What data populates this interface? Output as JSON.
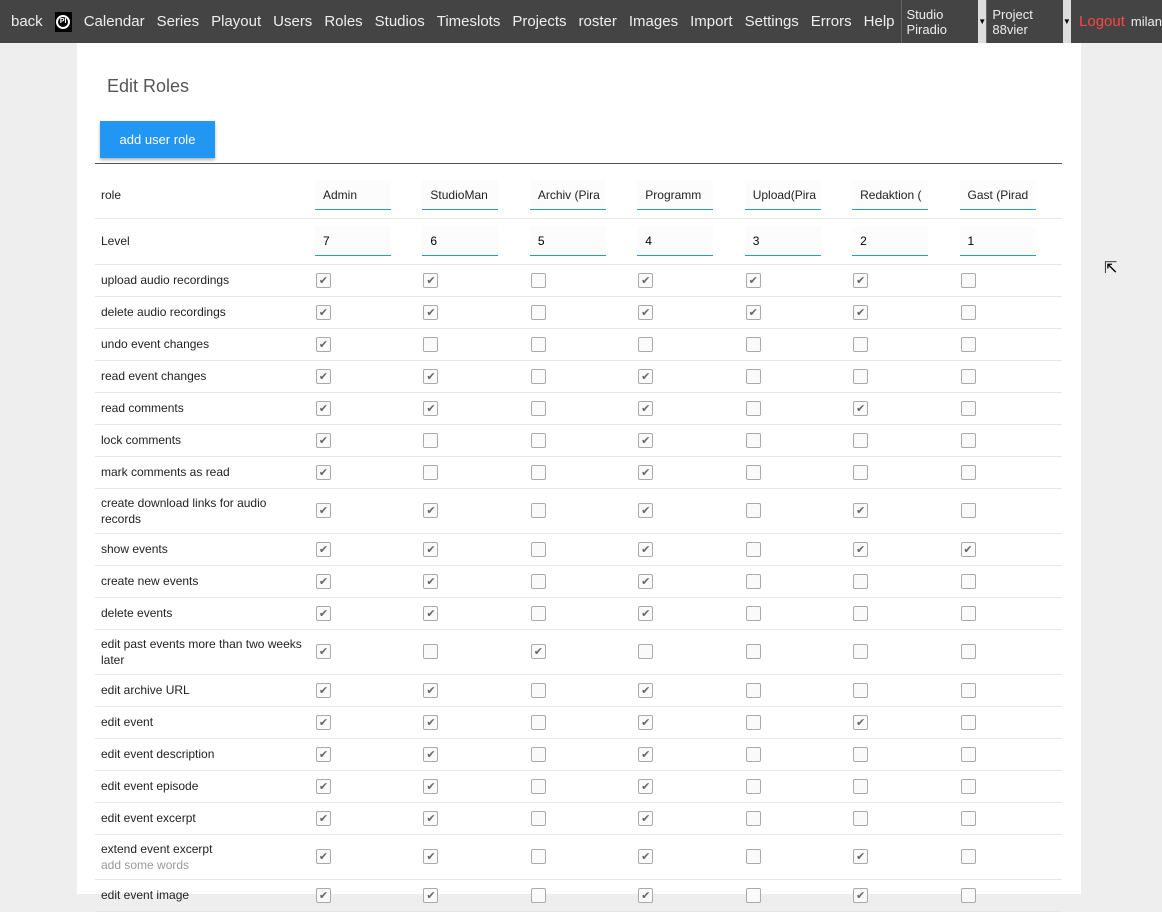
{
  "nav": {
    "back": "back",
    "items": [
      "Calendar",
      "Series",
      "Playout",
      "Users",
      "Roles",
      "Studios",
      "Timeslots",
      "Projects",
      "roster",
      "Images",
      "Import",
      "Settings",
      "Errors",
      "Help"
    ],
    "studio": "Studio Piradio",
    "project": "Project 88vier",
    "logout": "Logout",
    "user": "milan",
    "logo": "PI"
  },
  "page": {
    "title": "Edit Roles",
    "add_button": "add user role"
  },
  "table": {
    "role_label": "role",
    "level_label": "Level",
    "roles": [
      "Admin",
      "StudioMan",
      "Archiv (Pira",
      "Programm",
      "Upload(Pira",
      "Redaktion (",
      "Gast (Pirad"
    ],
    "levels": [
      "7",
      "6",
      "5",
      "4",
      "3",
      "2",
      "1"
    ],
    "permissions": [
      {
        "label": "upload audio recordings",
        "values": [
          1,
          1,
          0,
          1,
          1,
          1,
          0
        ]
      },
      {
        "label": "delete audio recordings",
        "values": [
          1,
          1,
          0,
          1,
          1,
          1,
          0
        ]
      },
      {
        "label": "undo event changes",
        "values": [
          1,
          0,
          0,
          0,
          0,
          0,
          0
        ]
      },
      {
        "label": "read event changes",
        "values": [
          1,
          1,
          0,
          1,
          0,
          0,
          0
        ]
      },
      {
        "label": "read comments",
        "values": [
          1,
          1,
          0,
          1,
          0,
          1,
          0
        ]
      },
      {
        "label": "lock comments",
        "values": [
          1,
          0,
          0,
          1,
          0,
          0,
          0
        ]
      },
      {
        "label": "mark comments as read",
        "values": [
          1,
          0,
          0,
          1,
          0,
          0,
          0
        ]
      },
      {
        "label": "create download links for audio records",
        "values": [
          1,
          1,
          0,
          1,
          0,
          1,
          0
        ]
      },
      {
        "label": "show events",
        "values": [
          1,
          1,
          0,
          1,
          0,
          1,
          1
        ]
      },
      {
        "label": "create new events",
        "values": [
          1,
          1,
          0,
          1,
          0,
          0,
          0
        ]
      },
      {
        "label": "delete events",
        "values": [
          1,
          1,
          0,
          1,
          0,
          0,
          0
        ]
      },
      {
        "label": "edit past events more than two weeks later",
        "values": [
          1,
          0,
          1,
          0,
          0,
          0,
          0
        ]
      },
      {
        "label": "edit archive URL",
        "values": [
          1,
          1,
          0,
          1,
          0,
          0,
          0
        ]
      },
      {
        "label": "edit event",
        "values": [
          1,
          1,
          0,
          1,
          0,
          1,
          0
        ]
      },
      {
        "label": "edit event description",
        "values": [
          1,
          1,
          0,
          1,
          0,
          0,
          0
        ]
      },
      {
        "label": "edit event episode",
        "values": [
          1,
          1,
          0,
          1,
          0,
          0,
          0
        ]
      },
      {
        "label": "edit event excerpt",
        "values": [
          1,
          1,
          0,
          1,
          0,
          0,
          0
        ]
      },
      {
        "label": "extend event excerpt",
        "hint": "add some words",
        "values": [
          1,
          1,
          0,
          1,
          0,
          1,
          0
        ]
      },
      {
        "label": "edit event image",
        "values": [
          1,
          1,
          0,
          1,
          0,
          1,
          0
        ]
      }
    ]
  }
}
